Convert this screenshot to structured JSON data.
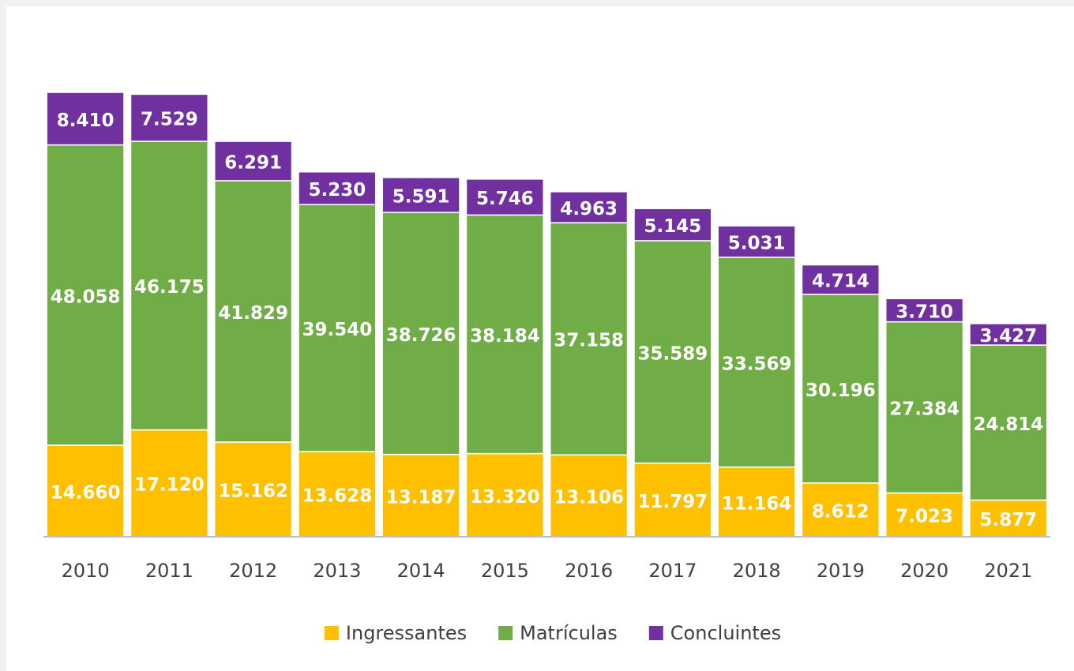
{
  "chart_data": {
    "type": "stacked_bar",
    "categories": [
      "2010",
      "2011",
      "2012",
      "2013",
      "2014",
      "2015",
      "2016",
      "2017",
      "2018",
      "2019",
      "2020",
      "2021"
    ],
    "series": [
      {
        "name": "Ingressantes",
        "color": "#ffc000",
        "values": [
          14660,
          17120,
          15162,
          13628,
          13187,
          13320,
          13106,
          11797,
          11164,
          8612,
          7023,
          5877
        ],
        "value_labels": [
          "14.660",
          "17.120",
          "15.162",
          "13.628",
          "13.187",
          "13.320",
          "13.106",
          "11.797",
          "11.164",
          "8.612",
          "7.023",
          "5.877"
        ]
      },
      {
        "name": "Matrículas",
        "color": "#70ad47",
        "values": [
          48058,
          46175,
          41829,
          39540,
          38726,
          38184,
          37158,
          35589,
          33569,
          30196,
          27384,
          24814
        ],
        "value_labels": [
          "48.058",
          "46.175",
          "41.829",
          "39.540",
          "38.726",
          "38.184",
          "37.158",
          "35.589",
          "33.569",
          "30.196",
          "27.384",
          "24.814"
        ]
      },
      {
        "name": "Concluintes",
        "color": "#7030a0",
        "values": [
          8410,
          7529,
          6291,
          5230,
          5591,
          5746,
          4963,
          5145,
          5031,
          4714,
          3710,
          3427
        ],
        "value_labels": [
          "8.410",
          "7.529",
          "6.291",
          "5.230",
          "5.591",
          "5.746",
          "4.963",
          "5.145",
          "5.031",
          "4.714",
          "3.710",
          "3.427"
        ]
      }
    ],
    "legend": "bottom"
  }
}
